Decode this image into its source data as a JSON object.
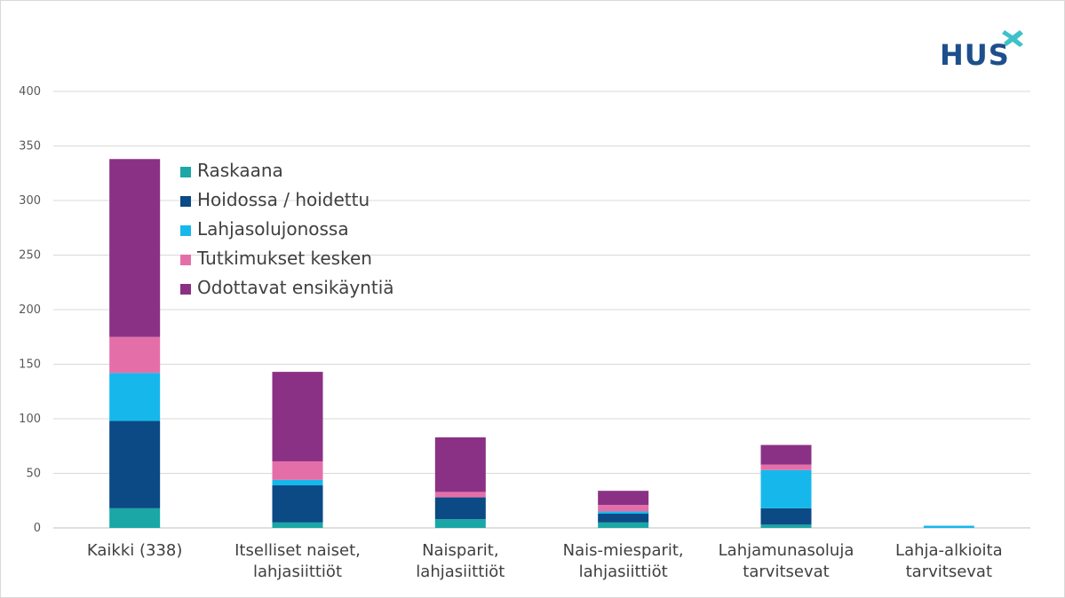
{
  "logo": {
    "text": "HUS",
    "color": "#1d4f8c",
    "accent_color": "#3fc1c9"
  },
  "chart_data": {
    "type": "bar",
    "stacked": true,
    "categories": [
      [
        "Kaikki (338)"
      ],
      [
        "Itselliset naiset,",
        "lahjasiittiöt"
      ],
      [
        "Naisparit,",
        "lahjasiittiöt"
      ],
      [
        "Nais-miesparit,",
        "lahjasiittiöt"
      ],
      [
        "Lahjamunasoluja",
        "tarvitsevat"
      ],
      [
        "Lahja-alkioita",
        "tarvitsevat"
      ]
    ],
    "series": [
      {
        "name": "Raskaana",
        "color": "#1aa7a6",
        "values": [
          18,
          5,
          8,
          5,
          3,
          0
        ]
      },
      {
        "name": "Hoidossa / hoidettu",
        "color": "#0b4a84",
        "values": [
          80,
          34,
          20,
          8,
          15,
          0
        ]
      },
      {
        "name": "Lahjasolujonossa",
        "color": "#16b8ec",
        "values": [
          44,
          5,
          0,
          2,
          35,
          2
        ]
      },
      {
        "name": "Tutkimukset kesken",
        "color": "#e46fa8",
        "values": [
          33,
          17,
          5,
          6,
          5,
          0
        ]
      },
      {
        "name": "Odottavat ensikäyntiä",
        "color": "#8b3185",
        "values": [
          163,
          82,
          50,
          13,
          18,
          0
        ]
      }
    ],
    "ylim": [
      0,
      400
    ],
    "yticks": [
      "0",
      "50",
      "100",
      "150",
      "200",
      "250",
      "300",
      "350",
      "400"
    ],
    "grid": true,
    "legend_position": "top-left inside plot",
    "xlabel": "",
    "ylabel": ""
  }
}
